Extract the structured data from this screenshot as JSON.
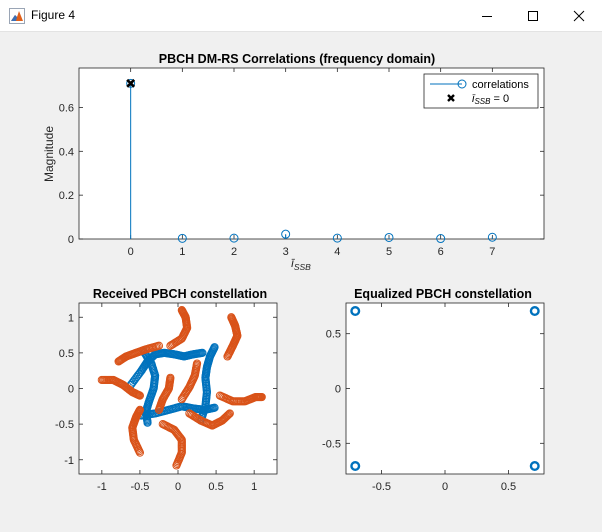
{
  "window": {
    "title": "Figure 4",
    "icons": {
      "app": "matlab-figure-icon",
      "minimize": "minimize-icon",
      "maximize": "maximize-icon",
      "close": "close-icon"
    }
  },
  "colors": {
    "blue": "#0072BD",
    "orange": "#D95319",
    "figure_bg": "#f0f0f0",
    "axes_bg": "#ffffff"
  },
  "chart_data": [
    {
      "type": "stem",
      "title": "PBCH DM-RS Correlations (frequency domain)",
      "xlabel": "ī_SSB",
      "xlabel_main": "ī",
      "xlabel_sub": "SSB",
      "ylabel": "Magnitude",
      "xlim": [
        -1,
        8
      ],
      "ylim": [
        0,
        0.78
      ],
      "xticks": [
        0,
        1,
        2,
        3,
        4,
        5,
        6,
        7
      ],
      "yticks": [
        0,
        0.2,
        0.4,
        0.6
      ],
      "ytick_labels": [
        "0",
        "0.2",
        "0.4",
        "0.6"
      ],
      "series": [
        {
          "name": "correlations",
          "marker": "o",
          "x": [
            0,
            1,
            2,
            3,
            4,
            5,
            6,
            7
          ],
          "values": [
            0.71,
            0.003,
            0.004,
            0.022,
            0.004,
            0.007,
            0.002,
            0.008
          ]
        },
        {
          "name": "ī_SSB = 0",
          "marker": "x",
          "x": [
            0
          ],
          "values": [
            0.71
          ]
        }
      ],
      "legend": {
        "placement": "top-right",
        "entries": [
          {
            "label": "correlations"
          },
          {
            "label_main": "ī",
            "label_sub": "SSB",
            "label_tail": " = 0"
          }
        ]
      },
      "grid": false
    },
    {
      "type": "scatter",
      "title": "Received PBCH constellation",
      "xlim": [
        -1.3,
        1.3
      ],
      "ylim": [
        -1.2,
        1.2
      ],
      "xticks": [
        -1,
        -0.5,
        0,
        0.5,
        1
      ],
      "xtick_labels": [
        "-1",
        "-0.5",
        "0",
        "0.5",
        "1"
      ],
      "yticks": [
        -1,
        -0.5,
        0,
        0.5,
        1
      ],
      "ytick_labels": [
        "-1",
        "-0.5",
        "0",
        "0.5",
        "1"
      ],
      "marker": "o",
      "series": [
        {
          "color": "#0072BD",
          "curves": [
            [
              [
                -0.62,
                0.05
              ],
              [
                -0.48,
                0.25
              ],
              [
                -0.4,
                0.38
              ],
              [
                -0.3,
                0.48
              ],
              [
                -0.18,
                0.5
              ],
              [
                -0.05,
                0.48
              ],
              [
                0.08,
                0.45
              ],
              [
                0.2,
                0.48
              ],
              [
                0.32,
                0.5
              ]
            ],
            [
              [
                -0.45,
                0.52
              ],
              [
                -0.35,
                0.35
              ],
              [
                -0.3,
                0.18
              ],
              [
                -0.32,
                0.0
              ],
              [
                -0.38,
                -0.18
              ],
              [
                -0.42,
                -0.32
              ],
              [
                -0.4,
                -0.48
              ]
            ],
            [
              [
                -0.48,
                -0.38
              ],
              [
                -0.3,
                -0.35
              ],
              [
                -0.12,
                -0.3
              ],
              [
                0.05,
                -0.25
              ],
              [
                0.2,
                -0.28
              ],
              [
                0.35,
                -0.3
              ],
              [
                0.48,
                -0.27
              ]
            ],
            [
              [
                0.3,
                -0.45
              ],
              [
                0.36,
                -0.25
              ],
              [
                0.38,
                -0.05
              ],
              [
                0.36,
                0.15
              ],
              [
                0.38,
                0.3
              ],
              [
                0.42,
                0.45
              ],
              [
                0.48,
                0.58
              ]
            ]
          ]
        },
        {
          "color": "#D95319",
          "curves": [
            [
              [
                -1.0,
                0.12
              ],
              [
                -0.85,
                0.12
              ],
              [
                -0.72,
                0.05
              ],
              [
                -0.6,
                -0.05
              ],
              [
                -0.5,
                -0.1
              ]
            ],
            [
              [
                -0.1,
                0.6
              ],
              [
                0.05,
                0.7
              ],
              [
                0.12,
                0.85
              ],
              [
                0.1,
                1.0
              ],
              [
                0.05,
                1.1
              ]
            ],
            [
              [
                0.65,
                0.45
              ],
              [
                0.72,
                0.6
              ],
              [
                0.78,
                0.74
              ],
              [
                0.75,
                0.88
              ],
              [
                0.7,
                1.0
              ]
            ],
            [
              [
                0.15,
                -0.35
              ],
              [
                0.3,
                -0.45
              ],
              [
                0.45,
                -0.52
              ],
              [
                0.58,
                -0.45
              ],
              [
                0.68,
                -0.35
              ]
            ],
            [
              [
                0.55,
                -0.1
              ],
              [
                0.72,
                -0.18
              ],
              [
                0.88,
                -0.18
              ],
              [
                1.02,
                -0.12
              ],
              [
                1.1,
                -0.12
              ]
            ],
            [
              [
                -0.2,
                -0.5
              ],
              [
                -0.05,
                -0.58
              ],
              [
                0.05,
                -0.72
              ],
              [
                0.05,
                -0.9
              ],
              [
                -0.02,
                -1.08
              ]
            ],
            [
              [
                -0.5,
                -0.9
              ],
              [
                -0.58,
                -0.72
              ],
              [
                -0.6,
                -0.55
              ],
              [
                -0.55,
                -0.4
              ],
              [
                -0.5,
                -0.3
              ]
            ],
            [
              [
                -0.25,
                0.6
              ],
              [
                -0.42,
                0.55
              ],
              [
                -0.55,
                0.5
              ],
              [
                -0.68,
                0.45
              ],
              [
                -0.78,
                0.38
              ]
            ],
            [
              [
                0.05,
                -0.15
              ],
              [
                0.15,
                0.02
              ],
              [
                0.22,
                0.18
              ],
              [
                0.25,
                0.35
              ]
            ],
            [
              [
                -0.1,
                0.15
              ],
              [
                -0.12,
                0.0
              ],
              [
                -0.2,
                -0.15
              ],
              [
                -0.25,
                -0.3
              ]
            ]
          ]
        }
      ],
      "grid": false
    },
    {
      "type": "scatter",
      "title": "Equalized PBCH constellation",
      "xlim": [
        -0.78,
        0.78
      ],
      "ylim": [
        -0.78,
        0.78
      ],
      "xticks": [
        -0.5,
        0,
        0.5
      ],
      "xtick_labels": [
        "-0.5",
        "0",
        "0.5"
      ],
      "yticks": [
        -0.5,
        0,
        0.5
      ],
      "ytick_labels": [
        "-0.5",
        "0",
        "0.5"
      ],
      "marker": "o",
      "series": [
        {
          "color": "#0072BD",
          "x": [
            -0.707,
            0.707,
            -0.707,
            0.707
          ],
          "y": [
            0.707,
            0.707,
            -0.707,
            -0.707
          ]
        }
      ],
      "grid": false
    }
  ]
}
